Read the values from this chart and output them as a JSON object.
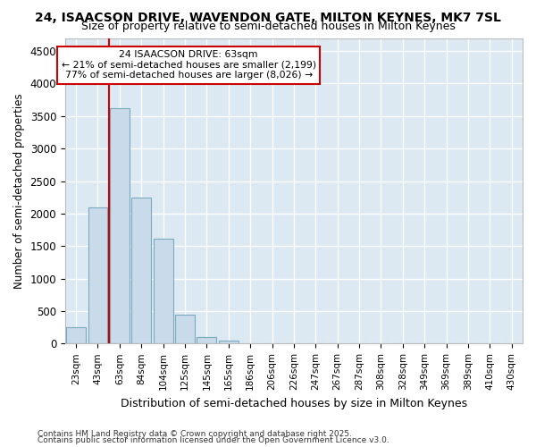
{
  "title1": "24, ISAACSON DRIVE, WAVENDON GATE, MILTON KEYNES, MK7 7SL",
  "title2": "Size of property relative to semi-detached houses in Milton Keynes",
  "xlabel": "Distribution of semi-detached houses by size in Milton Keynes",
  "ylabel": "Number of semi-detached properties",
  "footer1": "Contains HM Land Registry data © Crown copyright and database right 2025.",
  "footer2": "Contains public sector information licensed under the Open Government Licence v3.0.",
  "bar_color": "#c9daea",
  "bar_edge_color": "#7aaabf",
  "bg_color": "#dce8f2",
  "grid_color": "#ffffff",
  "fig_bg_color": "#ffffff",
  "annotation_box_color": "#cc0000",
  "vline_color": "#cc0000",
  "categories": [
    "23sqm",
    "43sqm",
    "63sqm",
    "84sqm",
    "104sqm",
    "125sqm",
    "145sqm",
    "165sqm",
    "186sqm",
    "206sqm",
    "226sqm",
    "247sqm",
    "267sqm",
    "287sqm",
    "308sqm",
    "328sqm",
    "349sqm",
    "369sqm",
    "389sqm",
    "410sqm",
    "430sqm"
  ],
  "values": [
    255,
    2100,
    3620,
    2240,
    1620,
    450,
    100,
    50,
    0,
    0,
    0,
    0,
    0,
    0,
    0,
    0,
    0,
    0,
    0,
    0,
    0
  ],
  "ylim": [
    0,
    4700
  ],
  "yticks": [
    0,
    500,
    1000,
    1500,
    2000,
    2500,
    3000,
    3500,
    4000,
    4500
  ],
  "vline_x_index": 2,
  "annotation_text1": "24 ISAACSON DRIVE: 63sqm",
  "annotation_text2": "← 21% of semi-detached houses are smaller (2,199)",
  "annotation_text3": "77% of semi-detached houses are larger (8,026) →"
}
